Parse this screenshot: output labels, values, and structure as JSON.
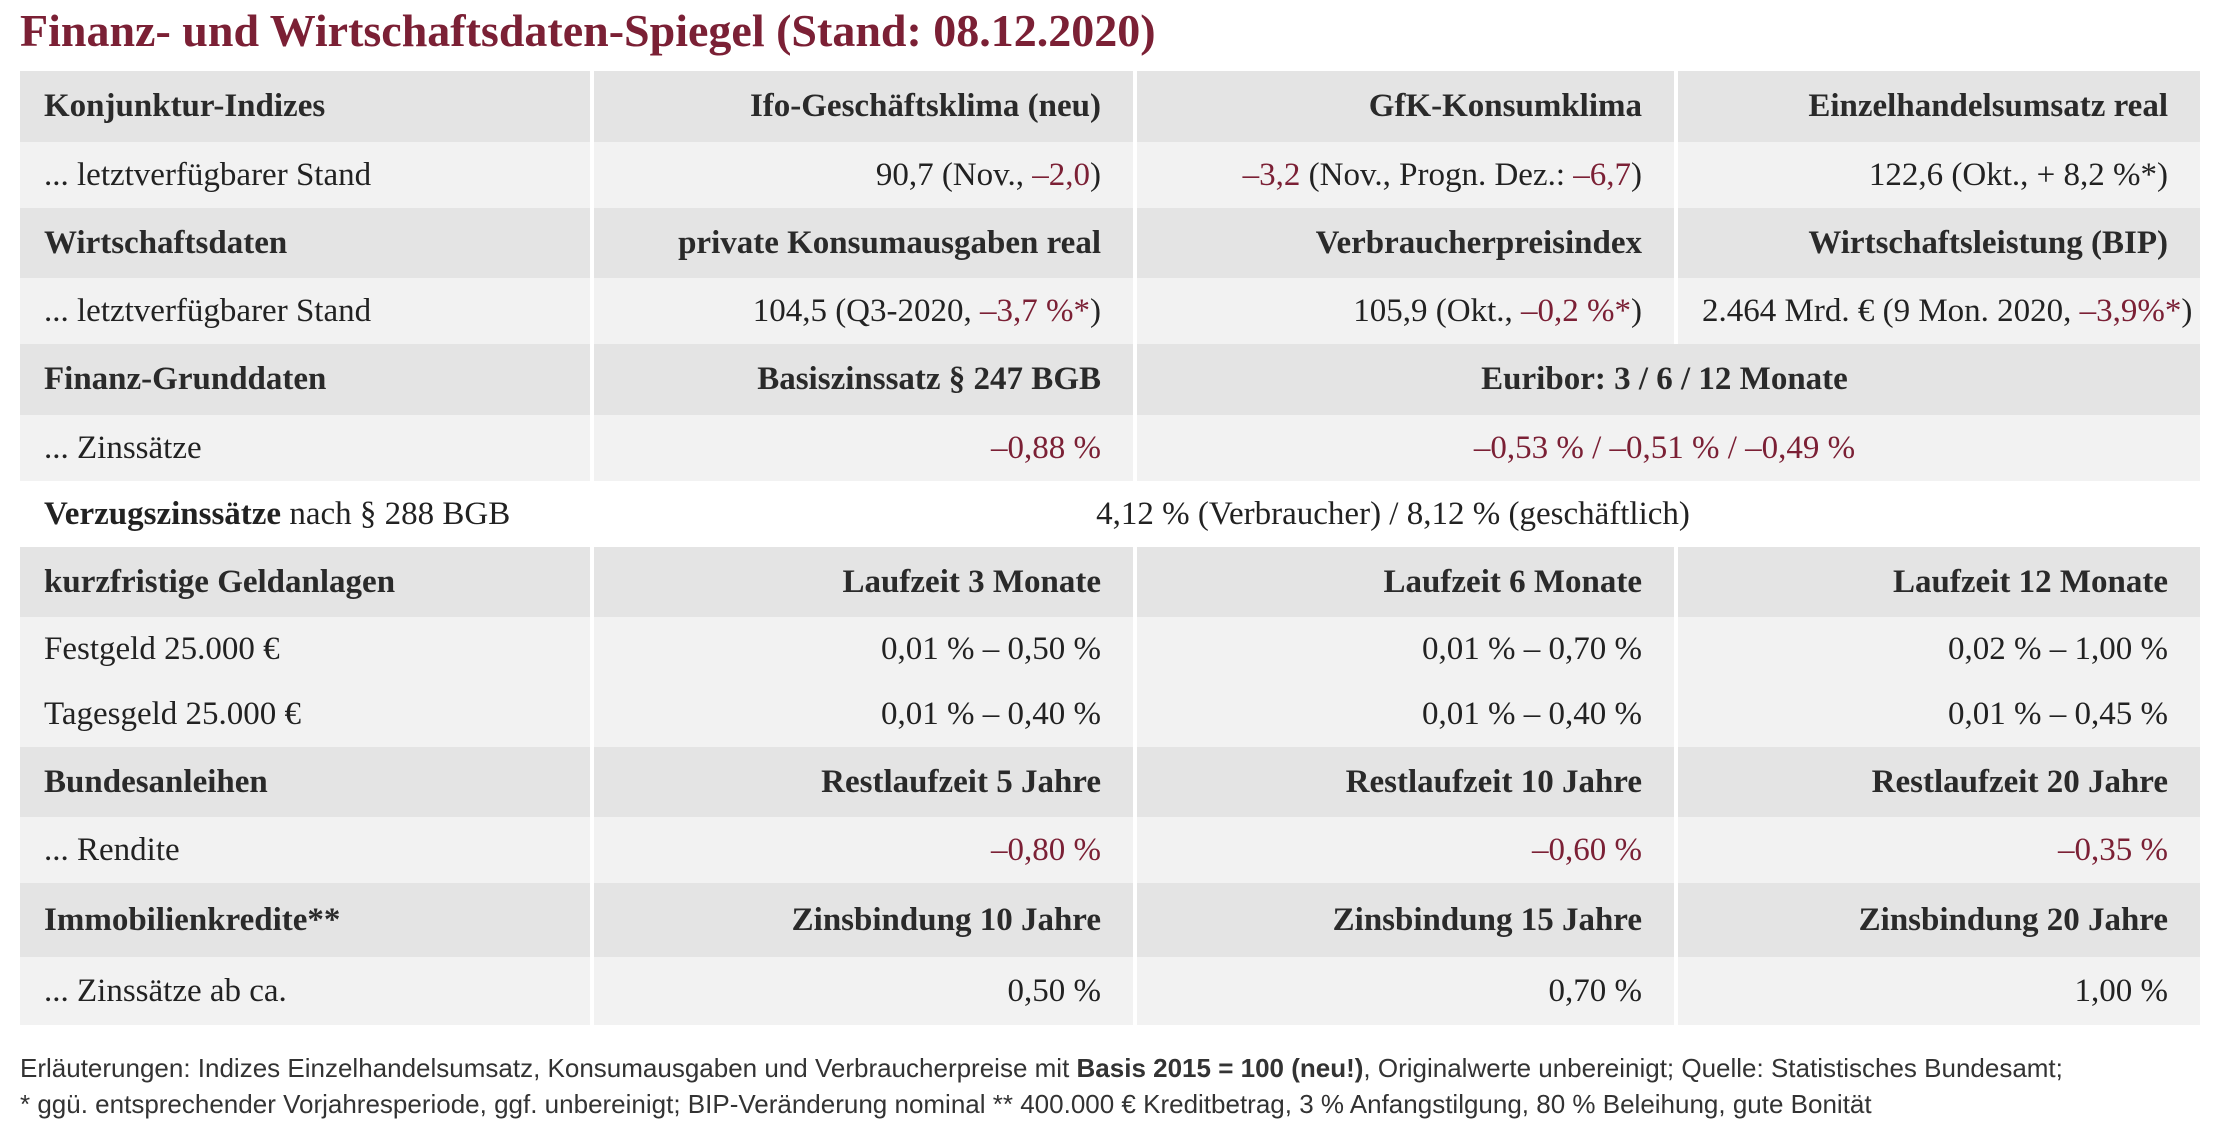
{
  "header": {
    "title": "Finanz- und Wirtschaftsdaten-Spiegel (Stand: 08.12.2020)"
  },
  "table": {
    "rows": [
      [
        "Konjunktur-Indizes",
        "Ifo-Geschäftsklima (neu)",
        "GfK-Konsumklima",
        "Einzelhandelsumsatz real"
      ],
      [
        "... letztverfügbarer Stand",
        [
          "90,7 (Nov., ",
          {
            "text": "–2,0",
            "color": "#7b2035"
          },
          ")"
        ],
        [
          {
            "text": "–3,2",
            "color": "#7b2035"
          },
          " (Nov., Progn. Dez.: ",
          {
            "text": "–6,7",
            "color": "#7b2035"
          },
          ")"
        ],
        "122,6 (Okt., + 8,2 %*)"
      ],
      [
        "Wirtschaftsdaten",
        "private Konsumausgaben real",
        "Verbraucherpreisindex",
        "Wirtschaftsleistung (BIP)"
      ],
      [
        "... letztverfügbarer Stand",
        [
          "104,5 (Q3-2020, ",
          {
            "text": "–3,7 %*",
            "color": "#7b2035"
          },
          ")"
        ],
        [
          "105,9 (Okt., ",
          {
            "text": "–0,2 %*",
            "color": "#7b2035"
          },
          ")"
        ],
        [
          "2.464 Mrd. € (9 Mon. 2020, ",
          {
            "text": "–3,9%*",
            "color": "#7b2035"
          },
          ")"
        ]
      ],
      [
        "Finanz-Grunddaten",
        "Basiszinssatz § 247 BGB",
        "Euribor: 3 / 6 / 12 Monate"
      ],
      [
        "... Zinssätze",
        [
          {
            "text": "–0,88 %",
            "color": "#7b2035"
          }
        ],
        [
          {
            "text": "–0,53 % / –0,51 % / –0,49 %",
            "color": "#7b2035"
          }
        ]
      ],
      [
        [
          {
            "text": "Verzugszinssätze",
            "bold": true
          },
          " nach § 288 BGB"
        ],
        "4,12 % (Verbraucher) / 8,12 % (geschäftlich)"
      ],
      [
        "kurzfristige Geldanlagen",
        "Laufzeit 3 Monate",
        "Laufzeit 6 Monate",
        "Laufzeit 12 Monate"
      ],
      [
        "Festgeld 25.000 €",
        "0,01 % – 0,50 %",
        "0,01 % – 0,70 %",
        "0,02 % – 1,00 %"
      ],
      [
        "Tagesgeld 25.000 €",
        "0,01 % – 0,40 %",
        "0,01 % – 0,40 %",
        "0,01 % – 0,45 %"
      ],
      [
        "Bundesanleihen",
        "Restlaufzeit 5 Jahre",
        "Restlaufzeit 10 Jahre",
        "Restlaufzeit 20 Jahre"
      ],
      [
        "... Rendite",
        [
          {
            "text": "–0,80 %",
            "color": "#7b2035"
          }
        ],
        [
          {
            "text": "–0,60 %",
            "color": "#7b2035"
          }
        ],
        [
          {
            "text": "–0,35 %",
            "color": "#7b2035"
          }
        ]
      ],
      [
        "Immobilienkredite**",
        "Zinsbindung 10 Jahre",
        "Zinsbindung 15 Jahre",
        "Zinsbindung 20 Jahre"
      ],
      [
        "... Zinssätze ab ca.",
        "0,50 %",
        "0,70 %",
        "1,00 %"
      ]
    ]
  },
  "notes": [
    [
      "Erläuterungen: Indizes Einzelhandelsumsatz, Konsumausgaben und Verbraucherpreise mit ",
      {
        "text": "Basis 2015 = 100 (neu!)",
        "bold": true
      },
      ", Originalwerte unbereinigt; Quelle: Statistisches Bundesamt;"
    ],
    [
      "* ggü. entsprechender Vorjahresperiode, ggf. unbereinigt; BIP-Veränderung nominal    ** 400.000 € Kreditbetrag, 3 % Anfangstilgung, 80 % Beleihung, gute Bonität"
    ]
  ]
}
